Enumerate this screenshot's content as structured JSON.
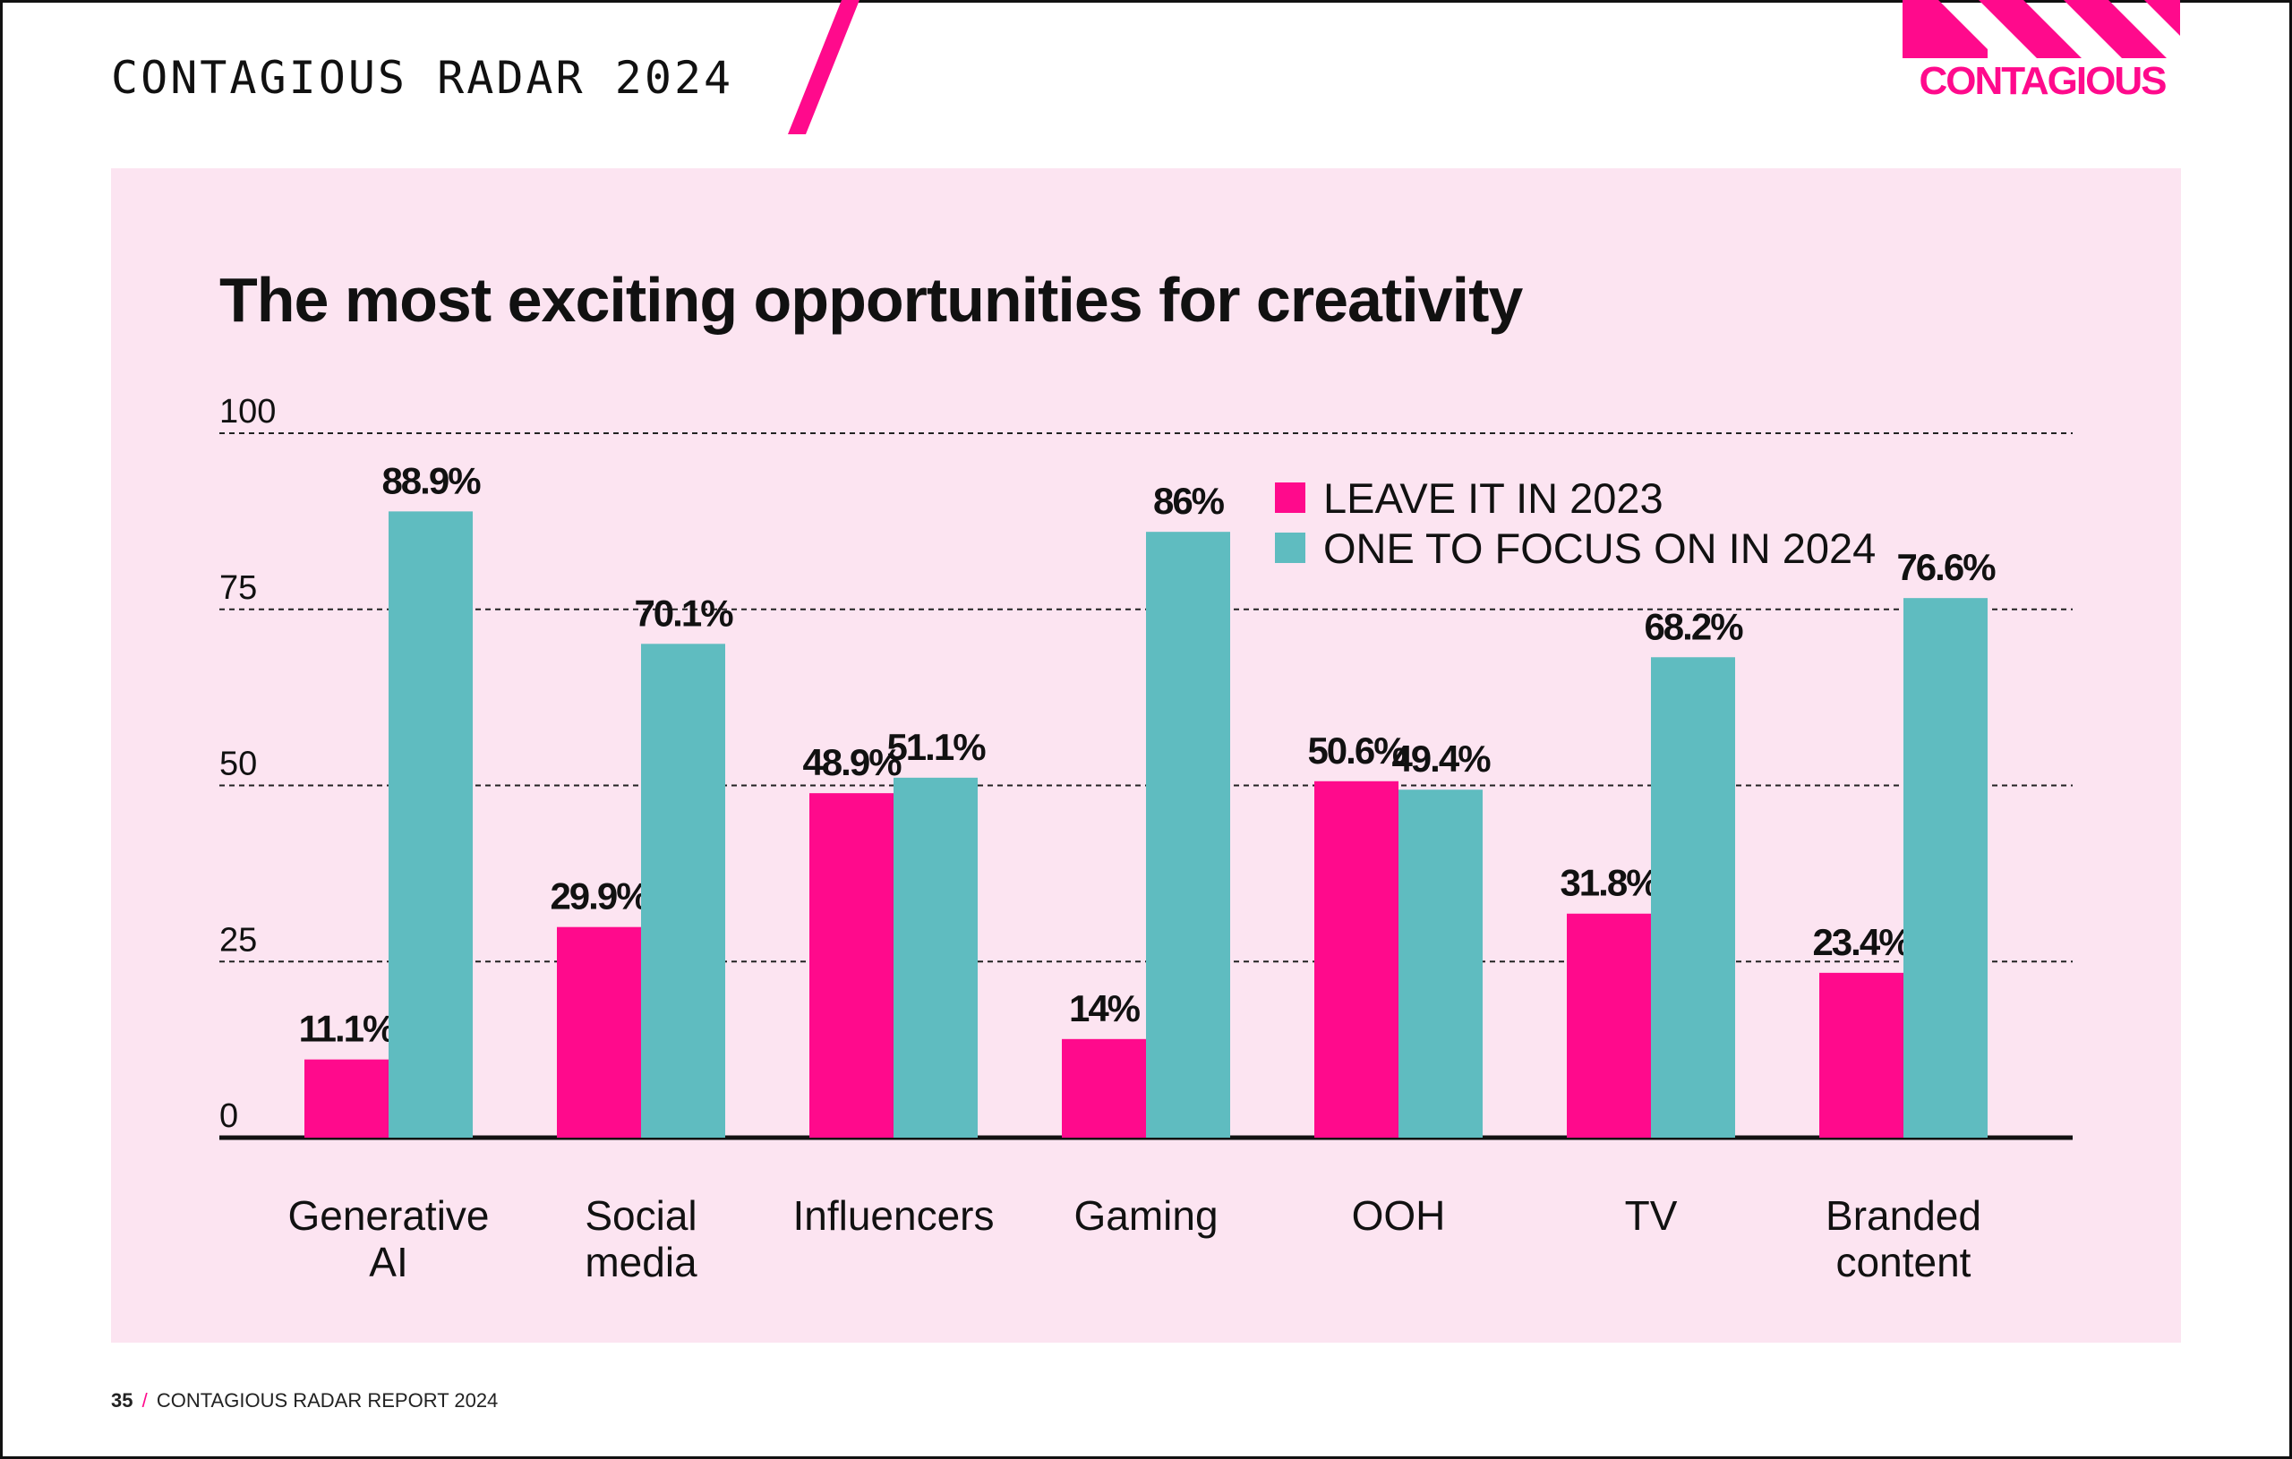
{
  "header": {
    "report_title": "CONTAGIOUS RADAR 2024",
    "logo_text": "CONTAGIOUS"
  },
  "footer": {
    "page_number": "35",
    "separator": "/",
    "text": "CONTAGIOUS RADAR REPORT 2024"
  },
  "colors": {
    "pink": "#ff0a8c",
    "teal": "#5fbcc0",
    "panel": "#fce4f1",
    "text": "#111111"
  },
  "chart_data": {
    "type": "bar",
    "title": "The most exciting opportunities for creativity",
    "categories": [
      [
        "Generative",
        "AI"
      ],
      [
        "Social",
        "media"
      ],
      [
        "Influencers"
      ],
      [
        "Gaming"
      ],
      [
        "OOH"
      ],
      [
        "TV"
      ],
      [
        "Branded",
        "content"
      ]
    ],
    "series": [
      {
        "name": "LEAVE IT IN 2023",
        "color": "#ff0a8c",
        "values": [
          11.1,
          29.9,
          48.9,
          14,
          50.6,
          31.8,
          23.4
        ],
        "labels": [
          "11.1%",
          "29.9%",
          "48.9%",
          "14%",
          "50.6%",
          "31.8%",
          "23.4%"
        ]
      },
      {
        "name": "ONE TO FOCUS ON IN 2024",
        "color": "#5fbcc0",
        "values": [
          88.9,
          70.1,
          51.1,
          86,
          49.4,
          68.2,
          76.6
        ],
        "labels": [
          "88.9%",
          "70.1%",
          "51.1%",
          "86%",
          "49.4%",
          "68.2%",
          "76.6%"
        ]
      }
    ],
    "ylim": [
      0,
      100
    ],
    "yticks": [
      0,
      25,
      50,
      75,
      100
    ],
    "grid": "dashed horizontal",
    "legend_position": "top-right"
  }
}
